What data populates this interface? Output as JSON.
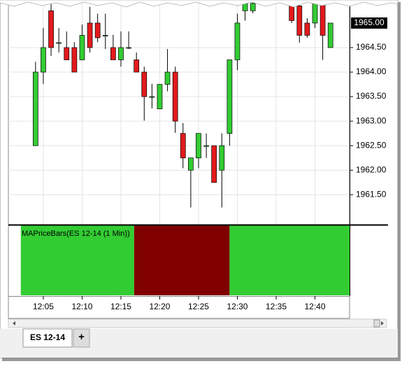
{
  "chart_data": {
    "type": "candlestick",
    "x": [
      4,
      5,
      6,
      7,
      8,
      9,
      10,
      11,
      12,
      13,
      14,
      15,
      16,
      17,
      18,
      19,
      20,
      21,
      22,
      23,
      24,
      25,
      26,
      27,
      28,
      29,
      30,
      31,
      32,
      37,
      38,
      39,
      40,
      41,
      42
    ],
    "open": [
      1962.5,
      1964.0,
      1965.25,
      1964.6,
      1964.5,
      1964.5,
      1964.25,
      1965.0,
      1965.0,
      1964.75,
      1964.5,
      1964.25,
      1964.5,
      1964.25,
      1964.0,
      1963.5,
      1963.25,
      1963.75,
      1964.0,
      1962.75,
      1962.0,
      1962.25,
      1962.5,
      1962.5,
      1962.0,
      1962.75,
      1964.25,
      1965.25,
      1965.25,
      1965.4,
      1965.35,
      1965.0,
      1965.0,
      1965.4,
      1964.5
    ],
    "high": [
      1964.21,
      1964.9,
      1965.45,
      1964.9,
      1964.83,
      1964.61,
      1964.97,
      1965.33,
      1965.19,
      1965.19,
      1964.76,
      1964.83,
      1964.83,
      1964.4,
      1964.11,
      1963.76,
      1963.75,
      1964.47,
      1964.11,
      1962.96,
      1962.25,
      1962.75,
      1962.75,
      1962.5,
      1962.75,
      1964.25,
      1965.19,
      1965.47,
      1965.47,
      1965.45,
      1965.4,
      1965.1,
      1965.47,
      1965.47,
      1965.0
    ],
    "low": [
      1962.5,
      1963.76,
      1964.33,
      1964.4,
      1964.25,
      1964.0,
      1964.25,
      1964.4,
      1964.61,
      1964.47,
      1964.25,
      1964.11,
      1964.47,
      1964.0,
      1963.01,
      1963.26,
      1963.25,
      1963.61,
      1962.76,
      1962.04,
      1961.24,
      1962.04,
      1962.25,
      1961.75,
      1961.24,
      1962.5,
      1964.04,
      1965.05,
      1965.2,
      1965.0,
      1964.6,
      1964.7,
      1964.9,
      1964.25,
      1964.5
    ],
    "close": [
      1964.0,
      1964.5,
      1964.5,
      1964.6,
      1964.25,
      1964.0,
      1964.75,
      1964.5,
      1964.7,
      1964.75,
      1964.25,
      1964.5,
      1964.5,
      1964.0,
      1963.5,
      1963.5,
      1963.75,
      1964.0,
      1963.0,
      1962.25,
      1962.25,
      1962.75,
      1962.5,
      1961.75,
      1962.5,
      1964.25,
      1965.0,
      1965.47,
      1965.4,
      1965.05,
      1964.75,
      1964.75,
      1965.47,
      1964.75,
      1965.0
    ],
    "up_color": "#33cc33",
    "down_color": "#e31a1c",
    "xlim": [
      0.5,
      44.46
    ],
    "xticks": [
      {
        "value": 5,
        "label": "12:05"
      },
      {
        "value": 10,
        "label": "12:10"
      },
      {
        "value": 15,
        "label": "12:15"
      },
      {
        "value": 20,
        "label": "12:20"
      },
      {
        "value": 25,
        "label": "12:25"
      },
      {
        "value": 30,
        "label": "12:30"
      },
      {
        "value": 35,
        "label": "12:35"
      },
      {
        "value": 40,
        "label": "12:40"
      }
    ],
    "ylim": [
      1960.89,
      1965.47
    ],
    "yticks": [
      {
        "value": 1961.5,
        "label": "1961.50"
      },
      {
        "value": 1962.0,
        "label": "1962.00"
      },
      {
        "value": 1962.5,
        "label": "1962.50"
      },
      {
        "value": 1963.0,
        "label": "1963.00"
      },
      {
        "value": 1963.5,
        "label": "1963.50"
      },
      {
        "value": 1964.0,
        "label": "1964.00"
      },
      {
        "value": 1964.5,
        "label": "1964.50"
      }
    ],
    "last_price": {
      "value": 1965.0,
      "label": "1965.00"
    },
    "grid": true,
    "indicator": {
      "title": "MAPriceBars(ES 12-14 (1 Min))",
      "regions": [
        {
          "start": 2.1,
          "end": 16.7,
          "color": "#33cc33"
        },
        {
          "start": 16.7,
          "end": 29.0,
          "color": "#800000"
        },
        {
          "start": 29.0,
          "end": 44.5,
          "color": "#33cc33"
        }
      ]
    }
  },
  "tabs": {
    "active": "ES 12-14",
    "add": "+"
  }
}
